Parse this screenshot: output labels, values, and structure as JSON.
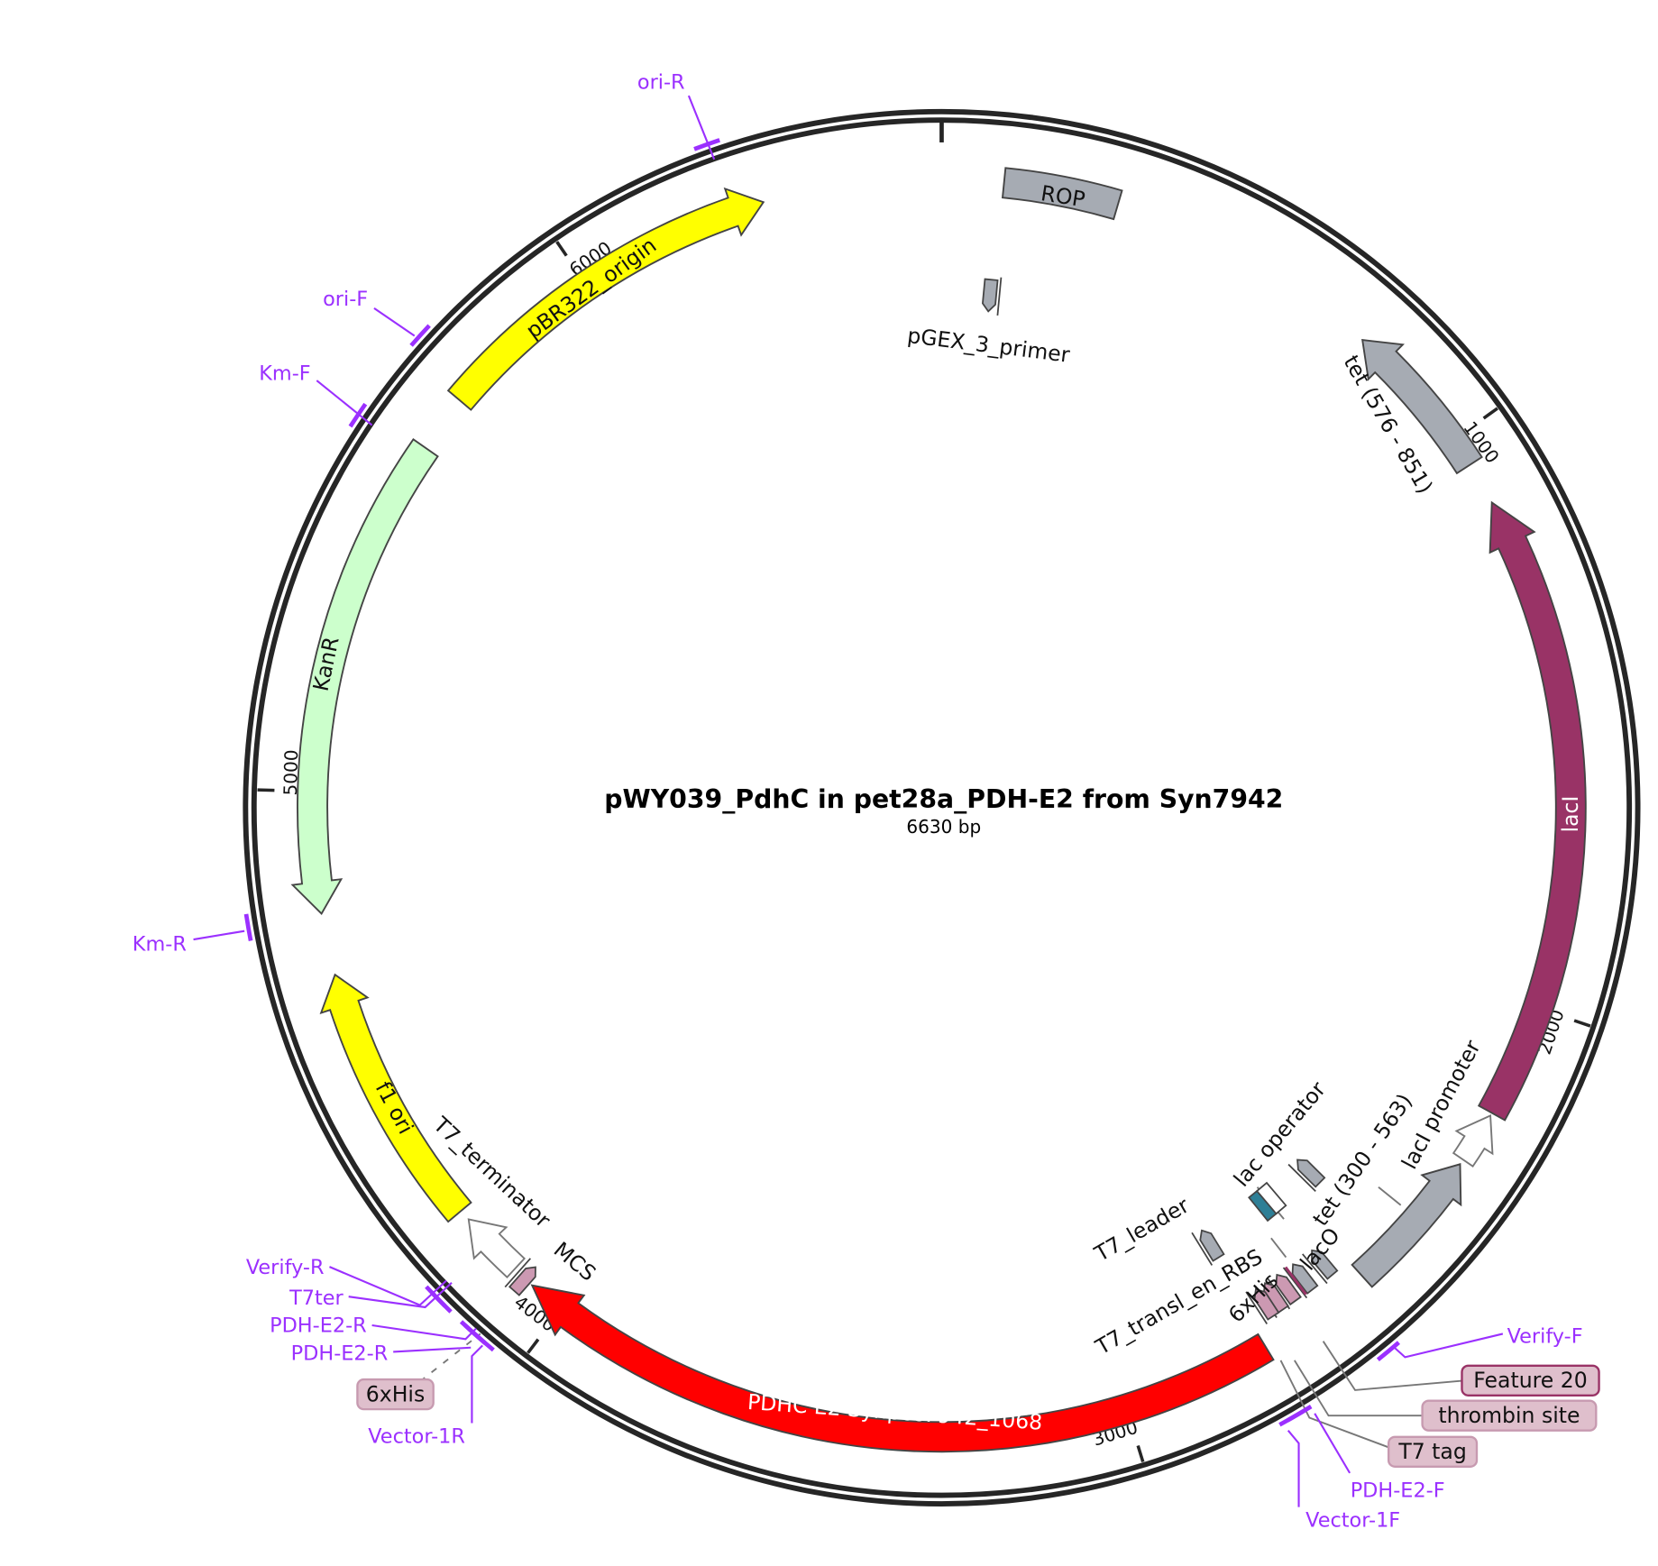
{
  "map": {
    "title": "pWY039_PdhC in pet28a_PDH-E2 from Syn7942",
    "length_label": "6630 bp",
    "length_bp": 6630
  },
  "colors": {
    "ring": "#262626",
    "primer": "#9b30ff",
    "gray_feature": "#a6abb3",
    "label_box": "#dfbfcc"
  },
  "ticks": [
    {
      "bp": 1000,
      "label": "1000"
    },
    {
      "bp": 2000,
      "label": "2000"
    },
    {
      "bp": 3000,
      "label": "3000"
    },
    {
      "bp": 4000,
      "label": "4000"
    },
    {
      "bp": 5000,
      "label": "5000"
    },
    {
      "bp": 6000,
      "label": "6000"
    }
  ],
  "features": [
    {
      "label": "ROP",
      "start": 105,
      "end": 300,
      "strand": 0,
      "color": "#a6abb3"
    },
    {
      "label": "pGEX_3_primer",
      "start": 99,
      "strand": 1,
      "color": "#a6abb3"
    },
    {
      "label": "tet (576 - 851)",
      "start": 773,
      "end": 1050,
      "strand": -1,
      "color": "#a6abb3"
    },
    {
      "label": "lacI",
      "start": 1123,
      "end": 2192,
      "strand": -1,
      "color": "#993366"
    },
    {
      "label": "lacI promoter",
      "start": 2197,
      "end": 2284,
      "strand": -1,
      "color": "#ffffff"
    },
    {
      "label": "tet (300 - 563)",
      "start": 2293,
      "end": 2543,
      "strand": -1,
      "color": "#a6abb3"
    },
    {
      "start": 2481,
      "strand": 1,
      "color": "#a6abb3"
    },
    {
      "label": "lac operator",
      "start": 2597,
      "strand": 0,
      "color": "#2e7f96"
    },
    {
      "start": 2575,
      "strand": 0,
      "color": "#ffffff"
    },
    {
      "label": "T7_leader",
      "start": 2733,
      "strand": 1,
      "color": "#a6abb3"
    },
    {
      "label": "lacO",
      "start": 2580,
      "strand": 1,
      "color": "#a6abb3"
    },
    {
      "label": "T7_transl_en_RBS",
      "start": 2623,
      "strand": 1,
      "color": "#a6abb3"
    },
    {
      "label": "Feature 20",
      "start": 2637,
      "strand": 0,
      "color": "#993366"
    },
    {
      "label": "T7 tag",
      "start": 2658,
      "strand": 1,
      "color": "#cc99b2"
    },
    {
      "label": "thrombin site",
      "start": 2685,
      "strand": 1,
      "color": "#cc99b2"
    },
    {
      "label": "6xHis",
      "start": 2705,
      "strand": 1,
      "color": "#cc99b2"
    },
    {
      "label": "PDHC E2  Synpcc7942_1068",
      "start": 2744,
      "end": 4063,
      "strand": 1,
      "color": "#ff0000"
    },
    {
      "label": "MCS",
      "start": 4079,
      "strand": 0,
      "color": "#cc99b2"
    },
    {
      "label": "T7_terminator",
      "start": 4103,
      "end": 4217,
      "strand": 1,
      "color": "#ffffff"
    },
    {
      "label": "f1 ori",
      "start": 4236,
      "end": 4689,
      "strand": 1,
      "color": "#ffff00"
    },
    {
      "label": "KanR",
      "start": 4794,
      "end": 5615,
      "strand": -1,
      "color": "#ccffcc"
    },
    {
      "label": "pBR322_origin",
      "start": 5713,
      "end": 6328,
      "strand": 1,
      "color": "#ffff00"
    },
    {
      "label": "6xHis",
      "start": 4116,
      "strand": 0,
      "color": "#cc99b2"
    }
  ],
  "primers": [
    {
      "label": "ori-R",
      "bp": 6271
    },
    {
      "label": "ori-F",
      "bp": 5749
    },
    {
      "label": "Km-F",
      "bp": 5597
    },
    {
      "label": "Km-R",
      "bp": 4792
    },
    {
      "label": "Verify-R",
      "bp": 4162
    },
    {
      "label": "T7ter",
      "bp": 4150
    },
    {
      "label": "PDH-E2-R",
      "bp": 4088
    },
    {
      "label": "PDH-E2-R",
      "bp": 4080
    },
    {
      "label": "Vector-1R",
      "bp": 4064
    },
    {
      "label": "Verify-F",
      "bp": 2589
    },
    {
      "label": "PDH-E2-F",
      "bp": 2766
    },
    {
      "label": "Vector-1F",
      "bp": 2752
    }
  ]
}
